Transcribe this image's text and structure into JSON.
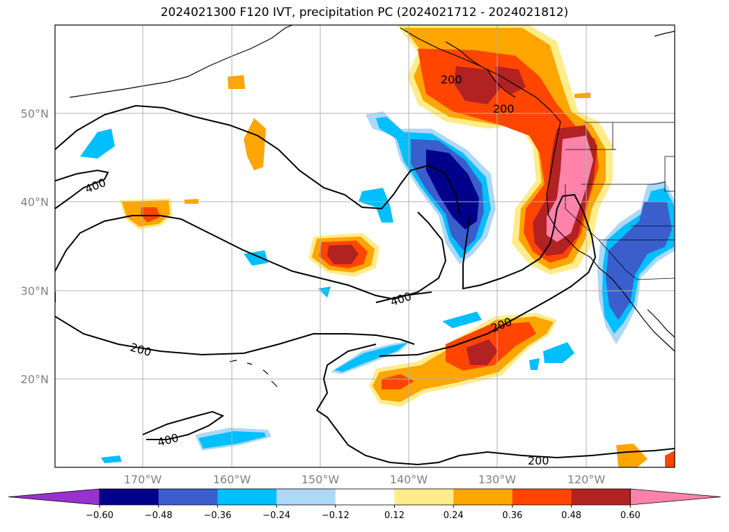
{
  "title": "2024021300 F120 IVT, precipitation PC (2024021712 - 2024021812)",
  "lat_labels": [
    "50°N",
    "40°N",
    "30°N",
    "20°N"
  ],
  "lon_labels": [
    "170°W",
    "160°W",
    "150°W",
    "140°W",
    "130°W",
    "120°W"
  ],
  "contour_labels": [
    "200",
    "200",
    "400",
    "400",
    "200",
    "200",
    "400",
    "200"
  ],
  "colorbar": {
    "ticks": [
      "−0.60",
      "−0.48",
      "−0.36",
      "−0.24",
      "−0.12",
      "0.12",
      "0.24",
      "0.36",
      "0.48",
      "0.60"
    ],
    "colors": [
      "#9932cc",
      "#00008b",
      "#3a5fcd",
      "#00bfff",
      "#add8f7",
      "#ffffff",
      "#ffec8b",
      "#ffa500",
      "#ff4500",
      "#b22222",
      "#ff82ab"
    ]
  },
  "palette": {
    "neg_strong": "#00008b",
    "neg_mid": "#3a5fcd",
    "neg_light": "#00bfff",
    "neg_pale": "#add8f7",
    "pos_pale": "#ffec8b",
    "pos_light": "#ffa500",
    "pos_mid": "#ff4500",
    "pos_dark": "#b22222",
    "pos_strong": "#ff82ab"
  }
}
